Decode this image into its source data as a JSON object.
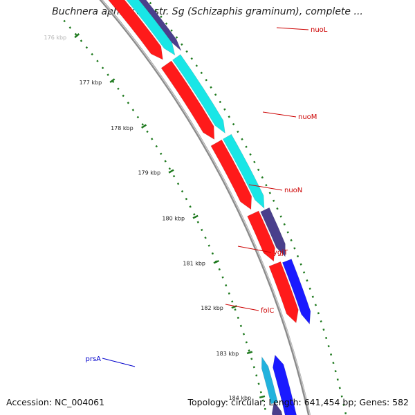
{
  "title": "Buchnera aphidicola str. Sg (Schizaphis graminum), complete ...",
  "footer": {
    "accession": "Accession: NC_004061",
    "summary": "Topology: circular; Length: 641,454 bp; Genes: 582"
  },
  "colors": {
    "backbone": "#8a8a8a",
    "ticks": "#1f7a1f",
    "forward_label": "#cc0000",
    "reverse_label": "#0000cc",
    "red": "#ff1a1a",
    "cyan": "#19e6e6",
    "slate": "#4a3f8c",
    "blue": "#1a1aff",
    "lightblue": "#22b2dd"
  },
  "scale_labels": [
    "176 kbp",
    "177 kbp",
    "178 kbp",
    "179 kbp",
    "180 kbp",
    "181 kbp",
    "182 kbp",
    "183 kbp",
    "184 kbp"
  ],
  "genes_forward": [
    {
      "label": "nuoL",
      "color": "red"
    },
    {
      "label": "nuoM",
      "color": "red"
    },
    {
      "label": "nuoN",
      "color": "red"
    },
    {
      "label": "ygjT",
      "color": "red"
    },
    {
      "label": "folC",
      "color": "red"
    }
  ],
  "genes_reverse": [
    {
      "label": "prsA",
      "color": "blue"
    }
  ]
}
